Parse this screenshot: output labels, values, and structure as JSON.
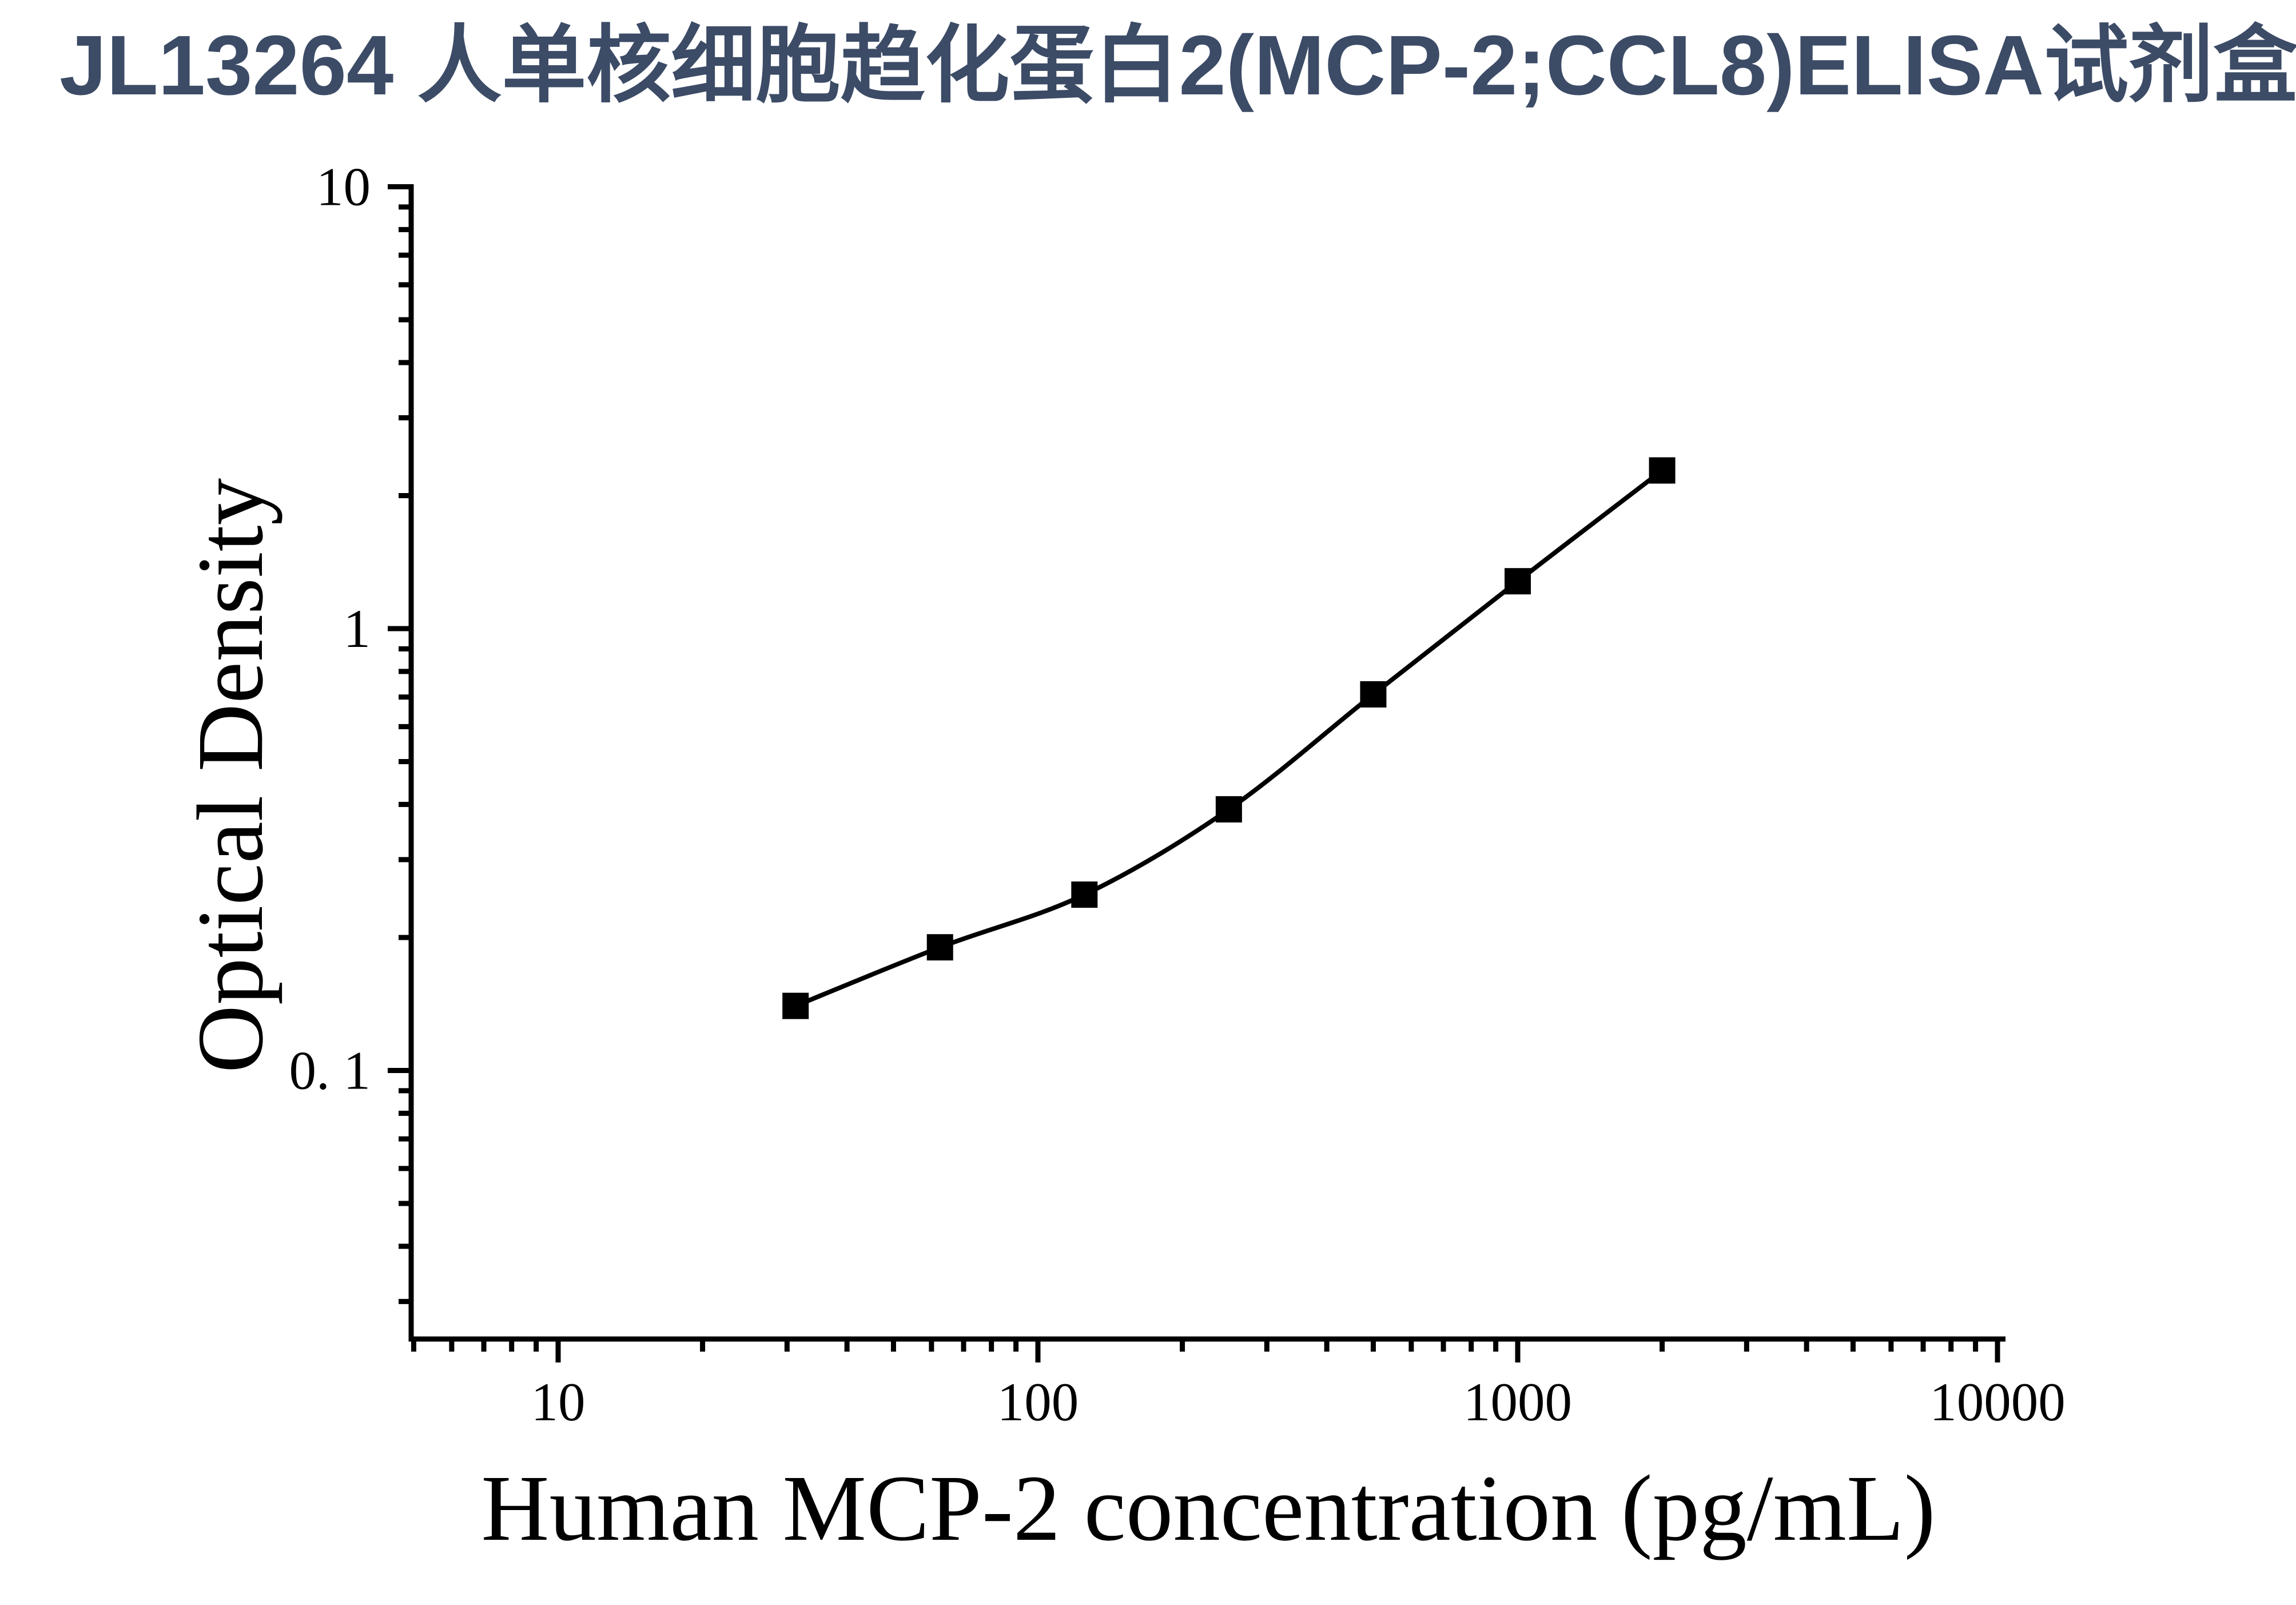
{
  "title": {
    "text": "JL13264 人单核细胞趋化蛋白2(MCP-2;CCL8)ELISA试剂盒",
    "color": "#3C4B66"
  },
  "chart_data": {
    "type": "scatter",
    "subtype": "log-log standard curve with smooth fitted line",
    "xlabel": "Human MCP-2 concentration (pg/mL)",
    "ylabel": "Optical Density",
    "x_scale": "log",
    "y_scale": "log",
    "xlim": [
      5,
      10200
    ],
    "ylim": [
      0.025,
      10
    ],
    "grid": false,
    "legend": "none",
    "marker": "filled-square",
    "marker_color": "#000000",
    "line_color": "#000000",
    "x": [
      31.25,
      62.5,
      125,
      250,
      500,
      1000,
      2000
    ],
    "y": [
      0.14,
      0.19,
      0.25,
      0.39,
      0.71,
      1.28,
      2.28
    ],
    "x_ticks": [
      {
        "v": 10,
        "label": "10"
      },
      {
        "v": 100,
        "label": "100"
      },
      {
        "v": 1000,
        "label": "1000"
      },
      {
        "v": 10000,
        "label": "10000"
      }
    ],
    "y_ticks": [
      {
        "v": 10,
        "label": "10"
      },
      {
        "v": 1,
        "label": "1"
      },
      {
        "v": 0.1,
        "label": "0. 1"
      }
    ]
  }
}
